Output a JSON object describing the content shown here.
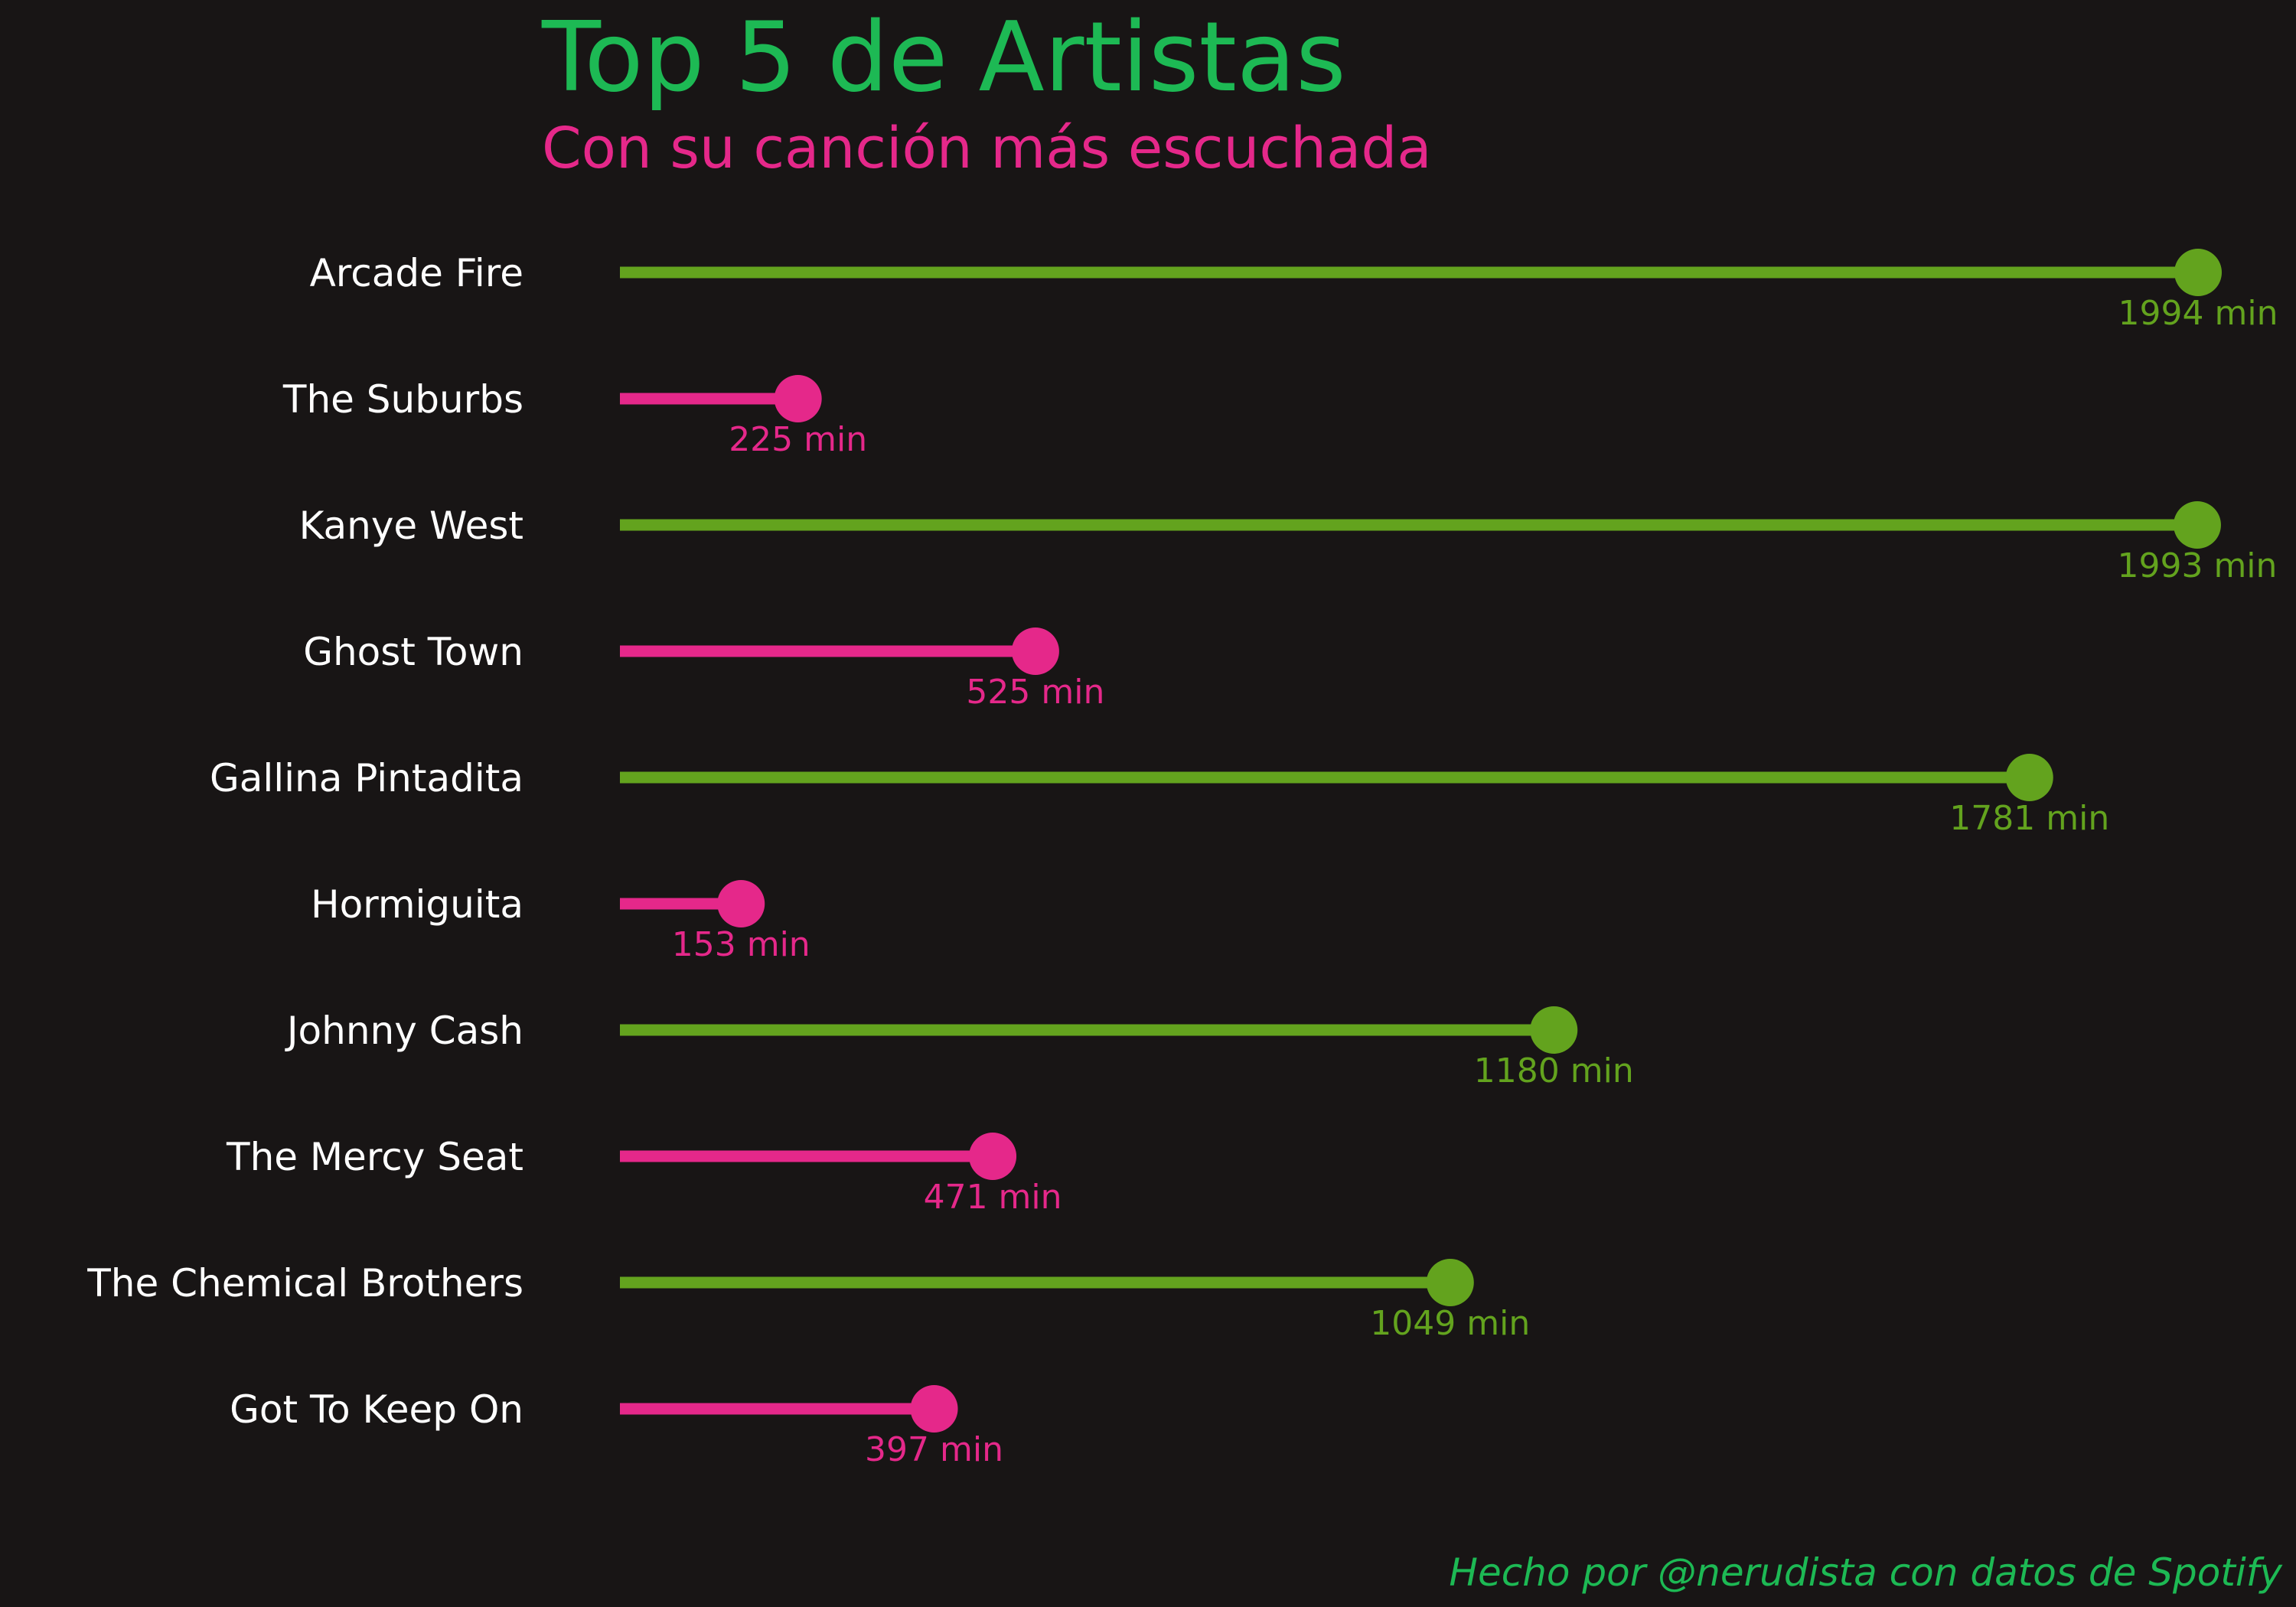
{
  "chart_data": {
    "type": "lollipop",
    "title": "Top 5 de Artistas",
    "subtitle": "Con su canción más escuchada",
    "caption": "Hecho por @nerudista con datos de Spotify",
    "unit": "min",
    "x_range": [
      0,
      1994
    ],
    "grid": false,
    "categories": [
      "Arcade Fire",
      "The Suburbs",
      "Kanye West",
      "Ghost Town",
      "Gallina Pintadita",
      "Hormiguita",
      "Johnny Cash",
      "The Mercy Seat",
      "The Chemical Brothers",
      "Got To Keep On"
    ],
    "kinds": [
      "artist",
      "song",
      "artist",
      "song",
      "artist",
      "song",
      "artist",
      "song",
      "artist",
      "song"
    ],
    "values": [
      1994,
      225,
      1993,
      525,
      1781,
      153,
      1180,
      471,
      1049,
      397
    ],
    "colors": {
      "artist": "#63a31e",
      "song": "#e5288a",
      "title": "#1db954",
      "subtitle": "#e5288a",
      "labels": "#ffffff",
      "background": "#181515"
    }
  }
}
